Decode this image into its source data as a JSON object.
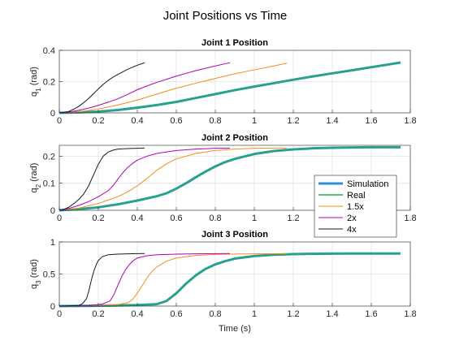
{
  "figure": {
    "title": "Joint Positions vs Time",
    "xlabel": "Time (s)"
  },
  "chart_data": [
    {
      "type": "line",
      "title": "Joint 1 Position",
      "ylabel": "q_1 (rad)",
      "ylabel_main": "q",
      "ylabel_sub": "1",
      "ylabel_unit": " (rad)",
      "xlim": [
        0,
        1.8
      ],
      "ylim": [
        0,
        0.4
      ],
      "xticks": [
        "0",
        "0.2",
        "0.4",
        "0.6",
        "0.8",
        "1",
        "1.2",
        "1.4",
        "1.6",
        "1.8"
      ],
      "xtick_values": [
        0,
        0.2,
        0.4,
        0.6,
        0.8,
        1.0,
        1.2,
        1.4,
        1.6,
        1.8
      ],
      "yticks": [
        "0",
        "0.2",
        "0.4"
      ],
      "ytick_values": [
        0,
        0.2,
        0.4
      ],
      "grid": true,
      "series": [
        {
          "name": "Simulation",
          "color": "#2f8fd8",
          "width": 3,
          "x": [
            0,
            0.1,
            0.2,
            0.3,
            0.4,
            0.5,
            0.6,
            0.7,
            0.8,
            0.9,
            1.0,
            1.1,
            1.2,
            1.3,
            1.4,
            1.5,
            1.6,
            1.7,
            1.75
          ],
          "y": [
            0,
            0.003,
            0.008,
            0.018,
            0.033,
            0.05,
            0.07,
            0.095,
            0.12,
            0.145,
            0.168,
            0.19,
            0.212,
            0.233,
            0.253,
            0.272,
            0.292,
            0.312,
            0.322
          ]
        },
        {
          "name": "Real",
          "color": "#22b14c",
          "width": 1.5,
          "x": [
            0,
            0.1,
            0.2,
            0.3,
            0.4,
            0.5,
            0.6,
            0.7,
            0.8,
            0.9,
            1.0,
            1.1,
            1.2,
            1.3,
            1.4,
            1.5,
            1.6,
            1.7,
            1.75
          ],
          "y": [
            0,
            0.003,
            0.008,
            0.018,
            0.033,
            0.05,
            0.07,
            0.095,
            0.12,
            0.145,
            0.168,
            0.19,
            0.212,
            0.233,
            0.253,
            0.272,
            0.292,
            0.312,
            0.322
          ]
        },
        {
          "name": "1.5x",
          "color": "#f28e1b",
          "width": 1,
          "x": [
            0,
            0.05,
            0.1,
            0.15,
            0.2,
            0.3,
            0.4,
            0.5,
            0.6,
            0.7,
            0.8,
            0.9,
            1.0,
            1.1,
            1.167
          ],
          "y": [
            0,
            0.003,
            0.008,
            0.015,
            0.025,
            0.05,
            0.082,
            0.12,
            0.158,
            0.19,
            0.22,
            0.25,
            0.275,
            0.3,
            0.318
          ]
        },
        {
          "name": "2x",
          "color": "#b300b3",
          "width": 1,
          "x": [
            0,
            0.05,
            0.1,
            0.15,
            0.2,
            0.25,
            0.3,
            0.35,
            0.4,
            0.45,
            0.5,
            0.55,
            0.6,
            0.65,
            0.7,
            0.75,
            0.8,
            0.85,
            0.875
          ],
          "y": [
            0,
            0.006,
            0.016,
            0.03,
            0.048,
            0.068,
            0.09,
            0.118,
            0.148,
            0.172,
            0.195,
            0.215,
            0.235,
            0.253,
            0.27,
            0.285,
            0.3,
            0.314,
            0.32
          ]
        },
        {
          "name": "4x",
          "color": "#1a1a1a",
          "width": 1,
          "x": [
            0,
            0.025,
            0.05,
            0.075,
            0.1,
            0.125,
            0.15,
            0.175,
            0.2,
            0.225,
            0.25,
            0.275,
            0.3,
            0.325,
            0.35,
            0.375,
            0.4,
            0.4375
          ],
          "y": [
            0,
            0.003,
            0.01,
            0.024,
            0.042,
            0.065,
            0.092,
            0.122,
            0.153,
            0.182,
            0.207,
            0.228,
            0.246,
            0.262,
            0.278,
            0.292,
            0.305,
            0.32
          ]
        }
      ]
    },
    {
      "type": "line",
      "title": "Joint 2 Position",
      "ylabel": "q_2 (rad)",
      "ylabel_main": "q",
      "ylabel_sub": "2",
      "ylabel_unit": " (rad)",
      "xlim": [
        0,
        1.8
      ],
      "ylim": [
        0,
        0.24
      ],
      "xticks": [
        "0",
        "0.2",
        "0.4",
        "0.6",
        "0.8",
        "1",
        "1.2",
        "1.4",
        "1.6",
        "1.8"
      ],
      "xtick_values": [
        0,
        0.2,
        0.4,
        0.6,
        0.8,
        1.0,
        1.2,
        1.4,
        1.6,
        1.8
      ],
      "yticks": [
        "0",
        "0.1",
        "0.2"
      ],
      "ytick_values": [
        0,
        0.1,
        0.2
      ],
      "grid": true,
      "series": [
        {
          "name": "Simulation",
          "color": "#2f8fd8",
          "width": 3,
          "x": [
            0,
            0.1,
            0.2,
            0.3,
            0.4,
            0.5,
            0.55,
            0.6,
            0.65,
            0.7,
            0.75,
            0.8,
            0.85,
            0.9,
            1.0,
            1.1,
            1.2,
            1.3,
            1.4,
            1.5,
            1.6,
            1.75
          ],
          "y": [
            0,
            0.004,
            0.011,
            0.022,
            0.036,
            0.052,
            0.063,
            0.08,
            0.1,
            0.122,
            0.143,
            0.162,
            0.178,
            0.19,
            0.208,
            0.219,
            0.225,
            0.229,
            0.231,
            0.232,
            0.233,
            0.233
          ]
        },
        {
          "name": "Real",
          "color": "#22b14c",
          "width": 1.5,
          "x": [
            0,
            0.1,
            0.2,
            0.3,
            0.4,
            0.5,
            0.55,
            0.6,
            0.65,
            0.7,
            0.75,
            0.8,
            0.85,
            0.9,
            1.0,
            1.1,
            1.2,
            1.3,
            1.4,
            1.5,
            1.6,
            1.75
          ],
          "y": [
            0,
            0.004,
            0.011,
            0.022,
            0.036,
            0.052,
            0.063,
            0.08,
            0.1,
            0.122,
            0.143,
            0.162,
            0.178,
            0.19,
            0.208,
            0.219,
            0.225,
            0.229,
            0.231,
            0.232,
            0.233,
            0.233
          ]
        },
        {
          "name": "1.5x",
          "color": "#f28e1b",
          "width": 1,
          "x": [
            0,
            0.1,
            0.2,
            0.3,
            0.35,
            0.4,
            0.45,
            0.5,
            0.55,
            0.6,
            0.7,
            0.8,
            0.9,
            1.0,
            1.1,
            1.167
          ],
          "y": [
            0,
            0.008,
            0.025,
            0.05,
            0.068,
            0.09,
            0.118,
            0.148,
            0.172,
            0.19,
            0.21,
            0.221,
            0.226,
            0.229,
            0.23,
            0.23
          ]
        },
        {
          "name": "2x",
          "color": "#b300b3",
          "width": 1,
          "x": [
            0,
            0.05,
            0.1,
            0.15,
            0.2,
            0.25,
            0.275,
            0.3,
            0.325,
            0.35,
            0.375,
            0.4,
            0.45,
            0.5,
            0.6,
            0.7,
            0.8,
            0.875
          ],
          "y": [
            0,
            0.007,
            0.018,
            0.032,
            0.05,
            0.072,
            0.09,
            0.115,
            0.138,
            0.158,
            0.173,
            0.185,
            0.2,
            0.21,
            0.221,
            0.226,
            0.229,
            0.23
          ]
        },
        {
          "name": "4x",
          "color": "#1a1a1a",
          "width": 1,
          "x": [
            0,
            0.025,
            0.05,
            0.075,
            0.1,
            0.125,
            0.15,
            0.175,
            0.2,
            0.225,
            0.25,
            0.275,
            0.3,
            0.35,
            0.4,
            0.4375
          ],
          "y": [
            0,
            0.004,
            0.012,
            0.025,
            0.04,
            0.06,
            0.09,
            0.13,
            0.17,
            0.2,
            0.215,
            0.222,
            0.226,
            0.228,
            0.229,
            0.23
          ]
        }
      ]
    },
    {
      "type": "line",
      "title": "Joint 3 Position",
      "ylabel": "q_3 (rad)",
      "ylabel_main": "q",
      "ylabel_sub": "3",
      "ylabel_unit": " (rad)",
      "xlabel": "Time (s)",
      "xlim": [
        0,
        1.8
      ],
      "ylim": [
        0,
        1
      ],
      "xticks": [
        "0",
        "0.2",
        "0.4",
        "0.6",
        "0.8",
        "1",
        "1.2",
        "1.4",
        "1.6",
        "1.8"
      ],
      "xtick_values": [
        0,
        0.2,
        0.4,
        0.6,
        0.8,
        1.0,
        1.2,
        1.4,
        1.6,
        1.8
      ],
      "yticks": [
        "0",
        "0.5",
        "1"
      ],
      "ytick_values": [
        0,
        0.5,
        1
      ],
      "grid": true,
      "series": [
        {
          "name": "Simulation",
          "color": "#2f8fd8",
          "width": 3,
          "x": [
            0,
            0.2,
            0.4,
            0.5,
            0.55,
            0.6,
            0.65,
            0.7,
            0.75,
            0.8,
            0.85,
            0.9,
            1.0,
            1.1,
            1.2,
            1.3,
            1.4,
            1.5,
            1.6,
            1.75
          ],
          "y": [
            0,
            0.005,
            0.015,
            0.03,
            0.08,
            0.2,
            0.35,
            0.48,
            0.58,
            0.65,
            0.7,
            0.74,
            0.78,
            0.8,
            0.81,
            0.815,
            0.818,
            0.82,
            0.82,
            0.82
          ]
        },
        {
          "name": "Real",
          "color": "#22b14c",
          "width": 1.5,
          "x": [
            0,
            0.2,
            0.4,
            0.5,
            0.55,
            0.6,
            0.65,
            0.7,
            0.75,
            0.8,
            0.85,
            0.9,
            1.0,
            1.1,
            1.2,
            1.3,
            1.4,
            1.5,
            1.6,
            1.75
          ],
          "y": [
            0,
            0.005,
            0.015,
            0.03,
            0.08,
            0.2,
            0.35,
            0.48,
            0.58,
            0.65,
            0.7,
            0.74,
            0.78,
            0.8,
            0.81,
            0.815,
            0.818,
            0.82,
            0.82,
            0.82
          ]
        },
        {
          "name": "1.5x",
          "color": "#f28e1b",
          "width": 1,
          "x": [
            0,
            0.2,
            0.3,
            0.35,
            0.375,
            0.4,
            0.425,
            0.45,
            0.475,
            0.5,
            0.55,
            0.6,
            0.7,
            0.8,
            0.9,
            1.0,
            1.1,
            1.167
          ],
          "y": [
            0,
            0.01,
            0.025,
            0.05,
            0.1,
            0.2,
            0.32,
            0.44,
            0.54,
            0.61,
            0.7,
            0.75,
            0.79,
            0.805,
            0.812,
            0.815,
            0.817,
            0.818
          ]
        },
        {
          "name": "2x",
          "color": "#b300b3",
          "width": 1,
          "x": [
            0,
            0.15,
            0.22,
            0.26,
            0.28,
            0.3,
            0.32,
            0.34,
            0.36,
            0.38,
            0.4,
            0.45,
            0.5,
            0.6,
            0.7,
            0.8,
            0.875
          ],
          "y": [
            0,
            0.01,
            0.03,
            0.08,
            0.18,
            0.32,
            0.46,
            0.57,
            0.65,
            0.71,
            0.75,
            0.785,
            0.8,
            0.81,
            0.815,
            0.818,
            0.82
          ]
        },
        {
          "name": "4x",
          "color": "#1a1a1a",
          "width": 1,
          "x": [
            0,
            0.1,
            0.12,
            0.14,
            0.15,
            0.16,
            0.17,
            0.18,
            0.19,
            0.2,
            0.22,
            0.25,
            0.3,
            0.35,
            0.4,
            0.4375
          ],
          "y": [
            0,
            0.01,
            0.04,
            0.12,
            0.22,
            0.35,
            0.47,
            0.57,
            0.65,
            0.71,
            0.77,
            0.8,
            0.81,
            0.815,
            0.818,
            0.82
          ]
        }
      ]
    }
  ],
  "legend": {
    "placement": "bottom-right of Joint 2 Position",
    "entries": [
      {
        "label": "Simulation",
        "color": "#2f8fd8",
        "width": 3
      },
      {
        "label": "Real",
        "color": "#22b14c",
        "width": 1.5
      },
      {
        "label": "1.5x",
        "color": "#f28e1b",
        "width": 1
      },
      {
        "label": "2x",
        "color": "#b300b3",
        "width": 1
      },
      {
        "label": "4x",
        "color": "#1a1a1a",
        "width": 1
      }
    ]
  }
}
